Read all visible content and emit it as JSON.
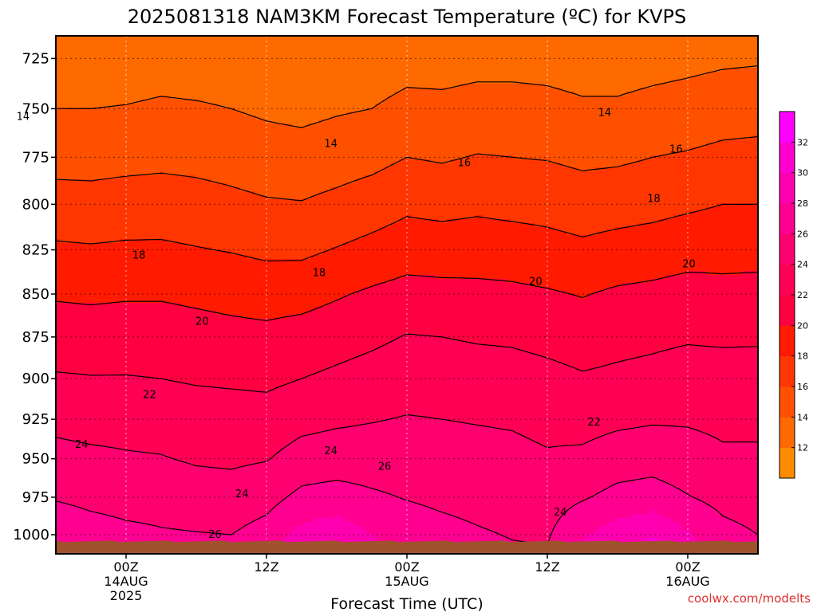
{
  "chart_data": {
    "type": "heatmap",
    "title": "2025081318 NAM3KM Forecast Temperature (ºC) for KVPS",
    "xlabel": "Forecast Time (UTC)",
    "ylabel": "",
    "y_ticks": [
      "725",
      "750",
      "775",
      "800",
      "825",
      "850",
      "875",
      "900",
      "925",
      "950",
      "975",
      "1000"
    ],
    "y_tick_values": [
      725,
      750,
      775,
      800,
      825,
      850,
      875,
      900,
      925,
      950,
      975,
      1000
    ],
    "ylim": [
      1013,
      714
    ],
    "y_scale": "log (pressure, hPa)",
    "x_ticks": [
      {
        "hour": 6,
        "lines": [
          "00Z",
          "14AUG",
          "2025"
        ]
      },
      {
        "hour": 18,
        "lines": [
          "12Z",
          "",
          ""
        ]
      },
      {
        "hour": 30,
        "lines": [
          "00Z",
          "15AUG",
          ""
        ]
      },
      {
        "hour": 42,
        "lines": [
          "12Z",
          "",
          ""
        ]
      },
      {
        "hour": 54,
        "lines": [
          "00Z",
          "16AUG",
          ""
        ]
      }
    ],
    "xlim": [
      0,
      60
    ],
    "colorbar": {
      "ticks": [
        "12",
        "14",
        "16",
        "18",
        "20",
        "22",
        "24",
        "26",
        "28",
        "30",
        "32"
      ],
      "levels": [
        10,
        12,
        14,
        16,
        18,
        20,
        22,
        24,
        26,
        28,
        30,
        32,
        34
      ],
      "colors": [
        "#ff8c00",
        "#ff6a00",
        "#ff5000",
        "#ff3600",
        "#ff1a00",
        "#ff0040",
        "#ff0055",
        "#ff0070",
        "#ff0090",
        "#ff00b0",
        "#ff00d0",
        "#ff00ff"
      ]
    },
    "contour_levels": [
      14,
      16,
      18,
      20,
      22,
      24,
      26
    ],
    "contour_labels": [
      {
        "text": "14",
        "hour": -2.8,
        "p": 754
      },
      {
        "text": "14",
        "hour": 23.5,
        "p": 768
      },
      {
        "text": "14",
        "hour": 46.9,
        "p": 752
      },
      {
        "text": "16",
        "hour": 34.9,
        "p": 778
      },
      {
        "text": "16",
        "hour": 53.0,
        "p": 771
      },
      {
        "text": "18",
        "hour": 7.1,
        "p": 828
      },
      {
        "text": "18",
        "hour": 22.5,
        "p": 838
      },
      {
        "text": "18",
        "hour": 51.1,
        "p": 797
      },
      {
        "text": "20",
        "hour": 12.5,
        "p": 866
      },
      {
        "text": "20",
        "hour": 41.0,
        "p": 843
      },
      {
        "text": "20",
        "hour": 54.1,
        "p": 833
      },
      {
        "text": "22",
        "hour": 8.0,
        "p": 910
      },
      {
        "text": "22",
        "hour": 46.0,
        "p": 927
      },
      {
        "text": "24",
        "hour": 2.2,
        "p": 941
      },
      {
        "text": "24",
        "hour": 23.5,
        "p": 945
      },
      {
        "text": "24",
        "hour": 15.9,
        "p": 973
      },
      {
        "text": "24",
        "hour": 43.1,
        "p": 985
      },
      {
        "text": "26",
        "hour": 28.1,
        "p": 955
      },
      {
        "text": "26",
        "hour": 13.6,
        "p": 1000
      }
    ],
    "profiles": [
      {
        "hour": -6,
        "temps": [
          12.8,
          13.8,
          15.0,
          16.6,
          18.0,
          19.3,
          20.6,
          21.6,
          23.0,
          24.3,
          25.4,
          27.6
        ]
      },
      {
        "hour": -3,
        "temps": [
          12.9,
          13.9,
          15.2,
          16.7,
          18.2,
          19.6,
          20.9,
          22.0,
          23.4,
          24.8,
          26.2,
          28.5
        ]
      },
      {
        "hour": 0,
        "temps": [
          12.9,
          14.0,
          15.3,
          16.8,
          18.3,
          19.8,
          21.0,
          22.2,
          23.5,
          24.6,
          25.8,
          27.8
        ]
      },
      {
        "hour": 3,
        "temps": [
          12.8,
          14.0,
          15.3,
          16.7,
          18.2,
          19.7,
          20.9,
          22.1,
          23.3,
          24.4,
          25.4,
          27.0
        ]
      },
      {
        "hour": 6,
        "temps": [
          12.9,
          14.1,
          15.4,
          16.9,
          18.3,
          19.8,
          21.0,
          22.1,
          23.3,
          24.2,
          25.2,
          26.5
        ]
      },
      {
        "hour": 9,
        "temps": [
          13.1,
          14.3,
          15.5,
          17.0,
          18.3,
          19.8,
          21.0,
          22.0,
          23.2,
          24.1,
          25.2,
          26.2
        ]
      },
      {
        "hour": 12,
        "temps": [
          13.0,
          14.2,
          15.4,
          16.8,
          18.1,
          19.6,
          20.8,
          21.8,
          23.0,
          23.8,
          24.9,
          26.1
        ]
      },
      {
        "hour": 15,
        "temps": [
          12.9,
          14.0,
          15.2,
          16.5,
          17.9,
          19.4,
          20.6,
          21.7,
          22.9,
          23.7,
          24.8,
          26.0
        ]
      },
      {
        "hour": 18,
        "temps": [
          12.6,
          13.7,
          14.9,
          16.2,
          17.6,
          19.2,
          20.5,
          21.6,
          22.8,
          23.9,
          25.3,
          26.8
        ]
      },
      {
        "hour": 21,
        "temps": [
          12.5,
          13.5,
          14.8,
          16.1,
          17.6,
          19.3,
          20.8,
          22.0,
          23.4,
          24.8,
          26.5,
          28.6
        ]
      },
      {
        "hour": 24,
        "temps": [
          12.7,
          13.8,
          15.1,
          16.5,
          18.1,
          19.8,
          21.2,
          22.4,
          23.7,
          25.0,
          26.8,
          29.3
        ]
      },
      {
        "hour": 27,
        "temps": [
          12.8,
          14.0,
          15.4,
          17.0,
          18.6,
          20.3,
          21.6,
          22.8,
          23.9,
          25.0,
          26.3,
          28.0
        ]
      },
      {
        "hour": 30,
        "temps": [
          13.2,
          14.6,
          16.0,
          17.6,
          19.1,
          20.7,
          22.1,
          23.2,
          24.1,
          24.9,
          25.9,
          27.1
        ]
      },
      {
        "hour": 33,
        "temps": [
          13.2,
          14.5,
          15.8,
          17.4,
          19.0,
          20.6,
          22.0,
          23.2,
          24.0,
          24.7,
          25.6,
          26.6
        ]
      },
      {
        "hour": 36,
        "temps": [
          13.4,
          14.7,
          16.1,
          17.6,
          19.1,
          20.5,
          21.8,
          23.0,
          23.9,
          24.6,
          25.4,
          26.2
        ]
      },
      {
        "hour": 39,
        "temps": [
          13.4,
          14.7,
          16.0,
          17.4,
          19.0,
          20.4,
          21.7,
          22.9,
          23.8,
          24.5,
          25.2,
          25.9
        ]
      },
      {
        "hour": 42,
        "temps": [
          13.3,
          14.6,
          15.9,
          17.3,
          18.7,
          20.2,
          21.4,
          22.6,
          23.5,
          24.2,
          25.1,
          25.8
        ]
      },
      {
        "hour": 45,
        "temps": [
          13.1,
          14.3,
          15.6,
          17.0,
          18.4,
          19.9,
          21.1,
          22.2,
          23.3,
          24.4,
          25.8,
          27.8
        ]
      },
      {
        "hour": 48,
        "temps": [
          13.1,
          14.3,
          15.7,
          17.2,
          18.7,
          20.3,
          21.4,
          22.4,
          23.6,
          25.0,
          26.6,
          29.0
        ]
      },
      {
        "hour": 51,
        "temps": [
          13.3,
          14.6,
          16.0,
          17.4,
          18.9,
          20.5,
          21.6,
          22.6,
          23.8,
          25.2,
          26.9,
          29.8
        ]
      },
      {
        "hour": 54,
        "temps": [
          13.5,
          14.8,
          16.2,
          17.7,
          19.2,
          20.8,
          21.8,
          22.9,
          23.8,
          24.8,
          26.1,
          28.2
        ]
      },
      {
        "hour": 57,
        "temps": [
          13.7,
          15.1,
          16.5,
          18.0,
          19.3,
          20.6,
          21.7,
          22.9,
          23.6,
          24.3,
          25.4,
          26.6
        ]
      },
      {
        "hour": 60,
        "temps": [
          13.8,
          15.2,
          16.6,
          18.0,
          19.4,
          20.6,
          21.8,
          22.7,
          23.6,
          24.3,
          25.1,
          26.0
        ]
      },
      {
        "hour": 63,
        "temps": [
          13.9,
          15.2,
          16.6,
          18.1,
          19.5,
          20.6,
          21.8,
          22.9,
          23.6,
          24.3,
          25.0,
          25.7
        ]
      }
    ],
    "ground": {
      "color": "#a0522d",
      "label": ""
    },
    "grid": true,
    "legend": "colorbar right"
  },
  "credit": "coolwx.com/modelts"
}
